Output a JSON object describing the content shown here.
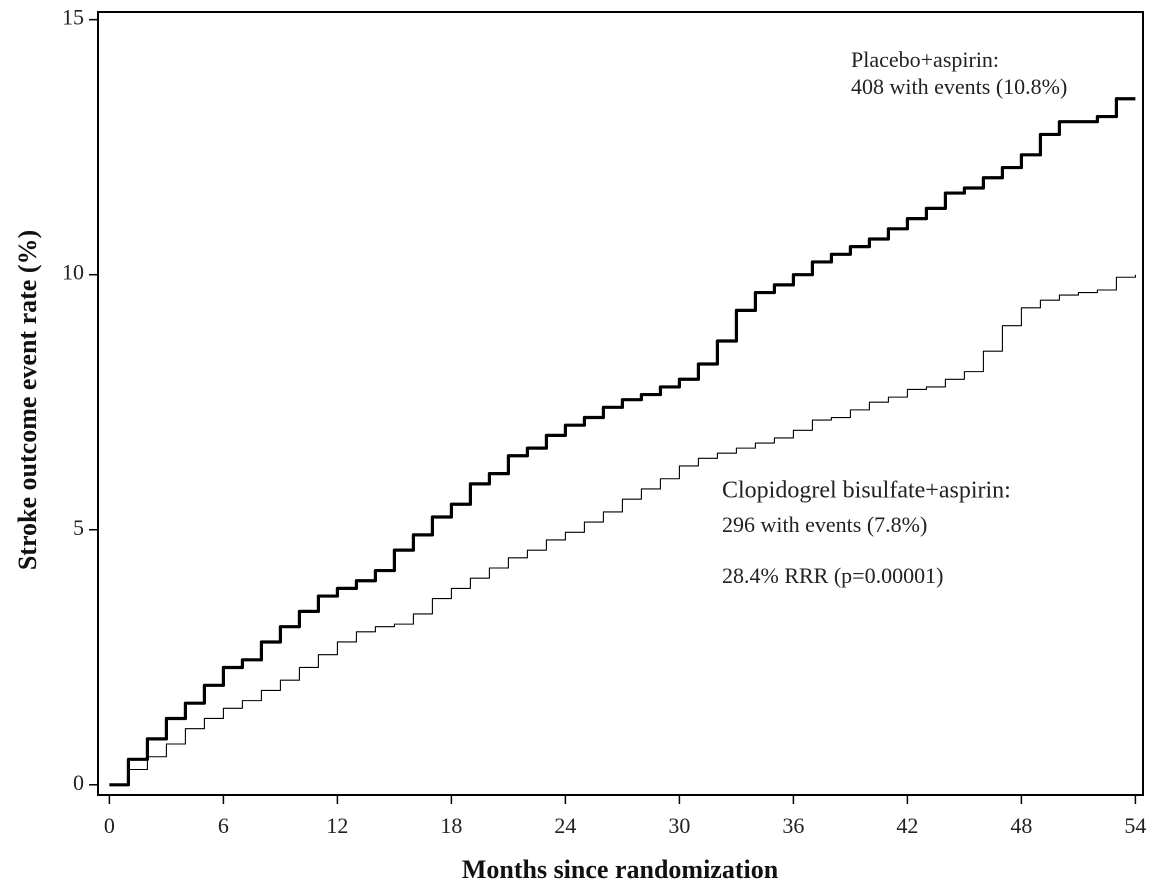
{
  "chart_data": {
    "type": "line",
    "step": true,
    "x_label": "Months since randomization",
    "y_label": "Stroke outcome event rate (%)",
    "x": [
      0,
      1,
      2,
      3,
      4,
      5,
      6,
      7,
      8,
      9,
      10,
      11,
      12,
      13,
      14,
      15,
      16,
      17,
      18,
      19,
      20,
      21,
      22,
      23,
      24,
      25,
      26,
      27,
      28,
      29,
      30,
      31,
      32,
      33,
      34,
      35,
      36,
      37,
      38,
      39,
      40,
      41,
      42,
      43,
      44,
      45,
      46,
      47,
      48,
      49,
      50,
      51,
      52,
      53,
      54
    ],
    "series": [
      {
        "name": "Placebo+aspirin:",
        "color": "#000000",
        "line_width": 3.2,
        "values": [
          0,
          0.5,
          0.9,
          1.3,
          1.6,
          1.95,
          2.3,
          2.45,
          2.8,
          3.1,
          3.4,
          3.7,
          3.85,
          4.0,
          4.2,
          4.6,
          4.9,
          5.25,
          5.5,
          5.9,
          6.1,
          6.45,
          6.6,
          6.85,
          7.05,
          7.2,
          7.4,
          7.55,
          7.65,
          7.8,
          7.95,
          8.25,
          8.7,
          9.3,
          9.65,
          9.8,
          10.0,
          10.25,
          10.4,
          10.55,
          10.7,
          10.9,
          11.1,
          11.3,
          11.6,
          11.7,
          11.9,
          12.1,
          12.35,
          12.75,
          13.0,
          13.0,
          13.1,
          13.45,
          13.45
        ]
      },
      {
        "name": "Clopidogrel bisulfate+aspirin:",
        "color": "#000000",
        "line_width": 1.1,
        "values": [
          0,
          0.3,
          0.55,
          0.8,
          1.1,
          1.3,
          1.5,
          1.65,
          1.85,
          2.05,
          2.3,
          2.55,
          2.8,
          3.0,
          3.1,
          3.15,
          3.35,
          3.65,
          3.85,
          4.05,
          4.25,
          4.45,
          4.6,
          4.8,
          4.95,
          5.15,
          5.35,
          5.6,
          5.8,
          6.0,
          6.25,
          6.4,
          6.5,
          6.6,
          6.7,
          6.8,
          6.95,
          7.15,
          7.2,
          7.35,
          7.5,
          7.6,
          7.75,
          7.8,
          7.95,
          8.1,
          8.5,
          9.0,
          9.35,
          9.5,
          9.6,
          9.65,
          9.7,
          9.95,
          10.0
        ]
      }
    ],
    "annotations": [
      "408 with events (10.8%)",
      "296 with events (7.8%)",
      "28.4% RRR (p=0.00001)"
    ],
    "xlim": [
      -0.6,
      54.4
    ],
    "xticks": [
      0,
      6,
      12,
      18,
      24,
      30,
      36,
      42,
      48,
      54
    ],
    "ylim": [
      -0.2,
      15.15
    ],
    "yticks": [
      0,
      5,
      10,
      15
    ]
  }
}
